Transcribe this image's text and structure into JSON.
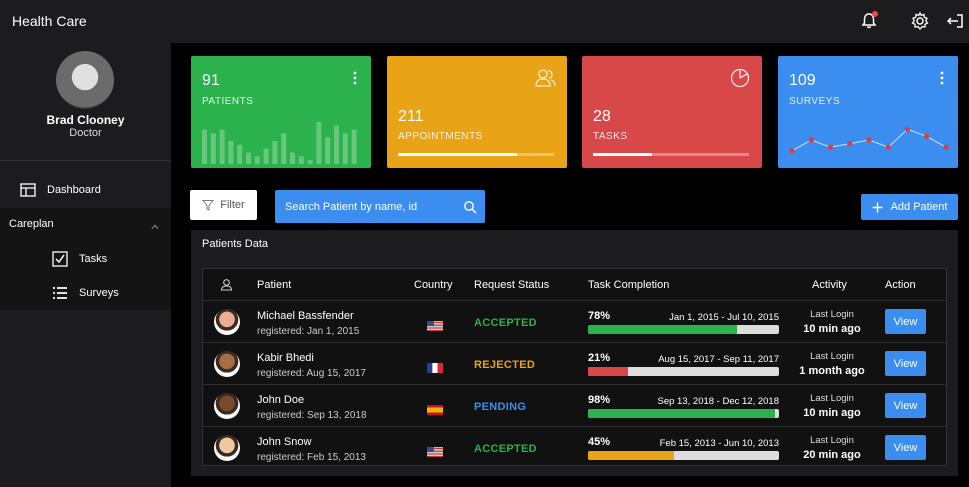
{
  "app": {
    "title": "Health Care"
  },
  "user": {
    "name": "Brad Clooney",
    "role": "Doctor"
  },
  "sidebar": {
    "dashboard_label": "Dashboard",
    "careplan_label": "Careplan",
    "items": [
      {
        "label": "Tasks",
        "icon": "checklist-icon"
      },
      {
        "label": "Surveys",
        "icon": "list-icon"
      }
    ]
  },
  "stats": [
    {
      "value": "91",
      "label": "PATIENTS",
      "color": "#2bb24c",
      "bars": [
        9,
        8,
        9,
        6,
        5,
        3,
        2,
        4,
        6,
        8,
        3,
        2,
        1,
        11,
        7,
        10,
        8,
        9
      ],
      "bar_max": 12
    },
    {
      "value": "211",
      "label": "APPOINTMENTS",
      "color": "#e8a317",
      "progress": 76
    },
    {
      "value": "28",
      "label": "TASKS",
      "color": "#d94848",
      "progress": 38
    },
    {
      "value": "109",
      "label": "SURVEYS",
      "color": "#3b8ef0",
      "points": [
        2,
        5,
        3,
        4,
        5,
        3,
        8,
        6,
        3
      ],
      "point_max": 10
    }
  ],
  "toolbar": {
    "filter_label": "Filter",
    "search_placeholder": "Search Patient by name, id",
    "add_label": "Add Patient"
  },
  "panel": {
    "title": "Patients Data"
  },
  "table": {
    "headers": [
      "Patient",
      "Country",
      "Request Status",
      "Task Completion",
      "Activity",
      "Action"
    ],
    "rows": [
      {
        "name": "Michael Bassfender",
        "registered": "registered: Jan 1, 2015",
        "country": "us",
        "status": "ACCEPTED",
        "status_color": "#2bb24c",
        "pct": "78%",
        "pct_num": 78,
        "bar_color": "#2bb24c",
        "range": "Jan 1, 2015 - Jul 10, 2015",
        "activity_label": "Last Login",
        "activity_value": "10 min ago",
        "action": "View",
        "avatar_color": "#e8b090"
      },
      {
        "name": "Kabir Bhedi",
        "registered": "registered: Aug 15, 2017",
        "country": "fr",
        "status": "REJECTED",
        "status_color": "#e8a317",
        "pct": "21%",
        "pct_num": 21,
        "bar_color": "#d94848",
        "range": "Aug 15, 2017 - Sep 11, 2017",
        "activity_label": "Last Login",
        "activity_value": "1 month ago",
        "action": "View",
        "avatar_color": "#a66e46"
      },
      {
        "name": "John Doe",
        "registered": "registered: Sep 13, 2018",
        "country": "es",
        "status": "PENDING",
        "status_color": "#3b8ef0",
        "pct": "98%",
        "pct_num": 98,
        "bar_color": "#2bb24c",
        "range": "Sep 13, 2018 - Dec 12, 2018",
        "activity_label": "Last Login",
        "activity_value": "10 min ago",
        "action": "View",
        "avatar_color": "#7a4a30"
      },
      {
        "name": "John Snow",
        "registered": "registered: Feb 15, 2013",
        "country": "us",
        "status": "ACCEPTED",
        "status_color": "#2bb24c",
        "pct": "45%",
        "pct_num": 45,
        "bar_color": "#e8a317",
        "range": "Feb 15, 2013 - Jun 10, 2013",
        "activity_label": "Last Login",
        "activity_value": "20 min ago",
        "action": "View",
        "avatar_color": "#f0c8a0"
      }
    ]
  }
}
